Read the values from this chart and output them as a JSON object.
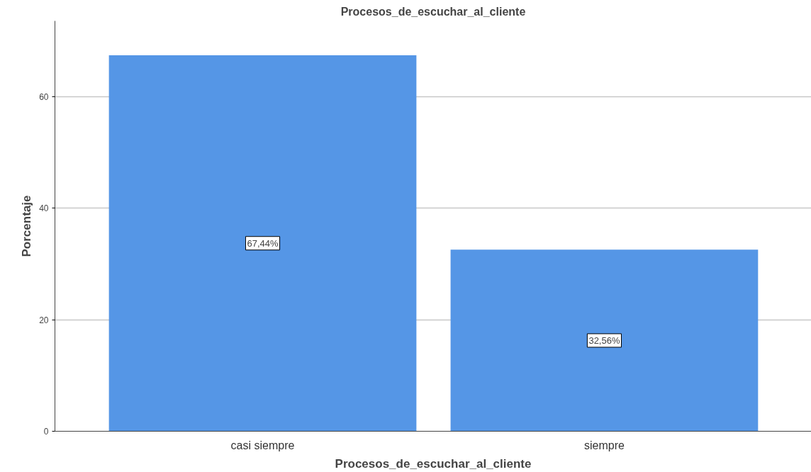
{
  "chart_data": {
    "type": "bar",
    "title": "Procesos_de_escuchar_al_cliente",
    "xlabel": "Procesos_de_escuchar_al_cliente",
    "ylabel": "Porcentaje",
    "categories": [
      "casi siempre",
      "siempre"
    ],
    "values": [
      67.44,
      32.56
    ],
    "value_labels": [
      "67,44%",
      "32,56%"
    ],
    "color": "#5596e6",
    "ylim": [
      0,
      73.6
    ],
    "yticks": [
      0,
      20,
      40,
      60
    ],
    "grid": "y"
  }
}
